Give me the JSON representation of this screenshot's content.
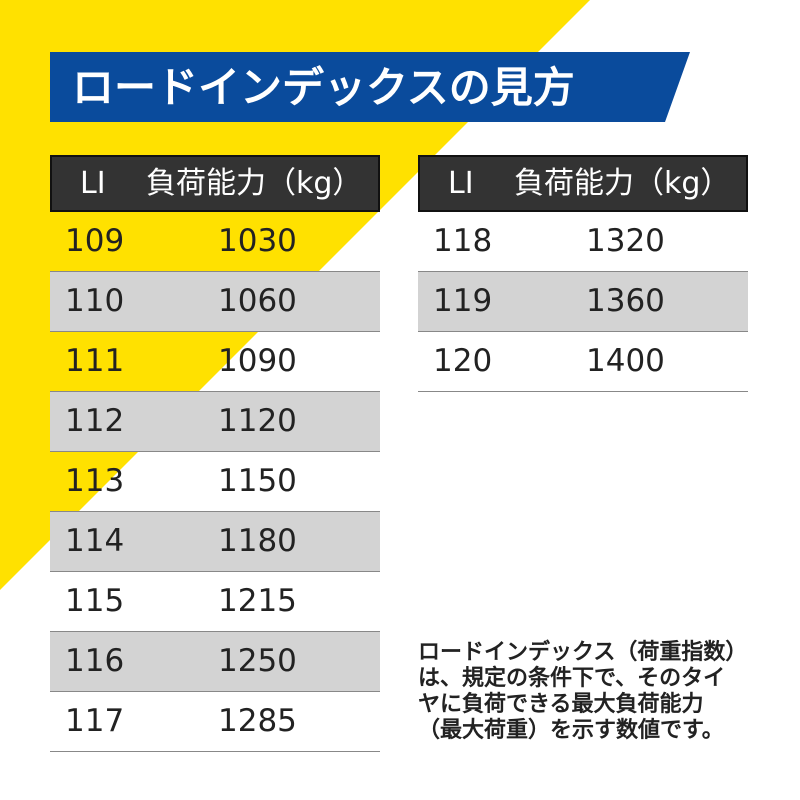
{
  "title": "ロードインデックスの見方",
  "tables": [
    {
      "headers": [
        "LI",
        "負荷能力（kg）"
      ],
      "rows": [
        [
          109,
          1030
        ],
        [
          110,
          1060
        ],
        [
          111,
          1090
        ],
        [
          112,
          1120
        ],
        [
          113,
          1150
        ],
        [
          114,
          1180
        ],
        [
          115,
          1215
        ],
        [
          116,
          1250
        ],
        [
          117,
          1285
        ]
      ]
    },
    {
      "headers": [
        "LI",
        "負荷能力（kg）"
      ],
      "rows": [
        [
          118,
          1320
        ],
        [
          119,
          1360
        ],
        [
          120,
          1400
        ]
      ]
    }
  ],
  "note": [
    "ロードインデックス（荷重指数）",
    "は、規定の条件下で、そのタイ",
    "ヤに負荷できる最大負荷能力",
    "（最大荷重）を示す数値です。"
  ]
}
